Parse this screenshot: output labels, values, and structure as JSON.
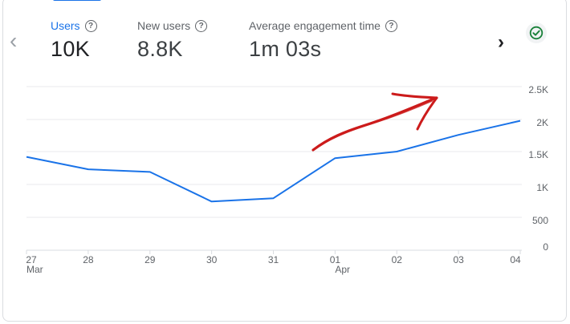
{
  "metrics": [
    {
      "label": "Users",
      "value": "10K",
      "active": true
    },
    {
      "label": "New users",
      "value": "8.8K",
      "active": false
    },
    {
      "label": "Average engagement time",
      "value": "1m 03s",
      "active": false
    }
  ],
  "help_glyph": "?",
  "nav": {
    "prev_glyph": "‹",
    "next_glyph": "›"
  },
  "colors": {
    "line": "#1a73e8",
    "annotation": "#cc1b1b",
    "grid": "#e8eaed",
    "accent": "#1a73e8",
    "status": "#188038"
  },
  "chart_data": {
    "type": "line",
    "categories": [
      "27",
      "28",
      "29",
      "30",
      "31",
      "01",
      "02",
      "03",
      "04"
    ],
    "month_labels": [
      {
        "index": 0,
        "label": "Mar"
      },
      {
        "index": 5,
        "label": "Apr"
      }
    ],
    "series": [
      {
        "values": [
          1420,
          1230,
          1190,
          740,
          790,
          1400,
          1500,
          1760,
          1980
        ]
      }
    ],
    "yticks": [
      {
        "value": 0,
        "label": "0"
      },
      {
        "value": 500,
        "label": "500"
      },
      {
        "value": 1000,
        "label": "1K"
      },
      {
        "value": 1500,
        "label": "1.5K"
      },
      {
        "value": 2000,
        "label": "2K"
      },
      {
        "value": 2500,
        "label": "2.5K"
      }
    ],
    "ylim": [
      0,
      2500
    ],
    "grid": true,
    "annotation": "hand-drawn-arrow"
  }
}
